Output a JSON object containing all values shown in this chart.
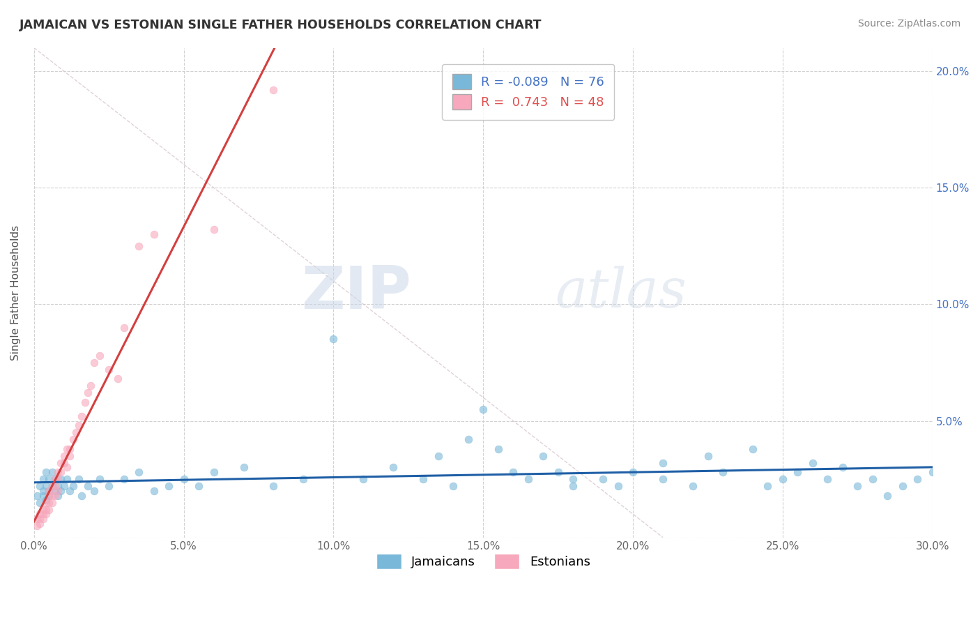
{
  "title": "JAMAICAN VS ESTONIAN SINGLE FATHER HOUSEHOLDS CORRELATION CHART",
  "source_text": "Source: ZipAtlas.com",
  "ylabel": "Single Father Households",
  "xlim": [
    0.0,
    0.3
  ],
  "ylim": [
    0.0,
    0.21
  ],
  "xtick_vals": [
    0.0,
    0.05,
    0.1,
    0.15,
    0.2,
    0.25,
    0.3
  ],
  "ytick_vals": [
    0.0,
    0.05,
    0.1,
    0.15,
    0.2
  ],
  "jamaicans_color": "#7ab8d9",
  "estonians_color": "#f7a8bc",
  "trendline_jamaicans_color": "#1f5fa6",
  "trendline_estonians_color": "#d43f3f",
  "diagonal_line_color": "#d8c8cc",
  "r_jamaicans": -0.089,
  "n_jamaicans": 76,
  "r_estonians": 0.743,
  "n_estonians": 48,
  "watermark_zip": "ZIP",
  "watermark_atlas": "atlas",
  "background_color": "#ffffff",
  "grid_color": "#cccccc",
  "ytick_color": "#4472c4",
  "jamaicans_x": [
    0.001,
    0.002,
    0.002,
    0.003,
    0.003,
    0.003,
    0.004,
    0.004,
    0.004,
    0.005,
    0.005,
    0.005,
    0.006,
    0.006,
    0.007,
    0.007,
    0.008,
    0.008,
    0.009,
    0.009,
    0.01,
    0.011,
    0.012,
    0.013,
    0.015,
    0.016,
    0.018,
    0.02,
    0.022,
    0.025,
    0.03,
    0.035,
    0.04,
    0.045,
    0.05,
    0.055,
    0.06,
    0.07,
    0.08,
    0.09,
    0.1,
    0.11,
    0.12,
    0.13,
    0.14,
    0.15,
    0.16,
    0.17,
    0.18,
    0.19,
    0.2,
    0.21,
    0.22,
    0.225,
    0.23,
    0.24,
    0.245,
    0.25,
    0.255,
    0.26,
    0.265,
    0.27,
    0.275,
    0.28,
    0.285,
    0.29,
    0.295,
    0.3,
    0.21,
    0.18,
    0.155,
    0.195,
    0.175,
    0.165,
    0.135,
    0.145
  ],
  "jamaicans_y": [
    0.018,
    0.022,
    0.015,
    0.02,
    0.018,
    0.025,
    0.016,
    0.022,
    0.028,
    0.02,
    0.025,
    0.018,
    0.022,
    0.028,
    0.02,
    0.025,
    0.018,
    0.022,
    0.025,
    0.02,
    0.022,
    0.025,
    0.02,
    0.022,
    0.025,
    0.018,
    0.022,
    0.02,
    0.025,
    0.022,
    0.025,
    0.028,
    0.02,
    0.022,
    0.025,
    0.022,
    0.028,
    0.03,
    0.022,
    0.025,
    0.085,
    0.025,
    0.03,
    0.025,
    0.022,
    0.055,
    0.028,
    0.035,
    0.022,
    0.025,
    0.028,
    0.025,
    0.022,
    0.035,
    0.028,
    0.038,
    0.022,
    0.025,
    0.028,
    0.032,
    0.025,
    0.03,
    0.022,
    0.025,
    0.018,
    0.022,
    0.025,
    0.028,
    0.032,
    0.025,
    0.038,
    0.022,
    0.028,
    0.025,
    0.035,
    0.042
  ],
  "estonians_x": [
    0.001,
    0.001,
    0.002,
    0.002,
    0.002,
    0.003,
    0.003,
    0.003,
    0.004,
    0.004,
    0.004,
    0.005,
    0.005,
    0.005,
    0.005,
    0.006,
    0.006,
    0.006,
    0.007,
    0.007,
    0.007,
    0.008,
    0.008,
    0.008,
    0.009,
    0.009,
    0.01,
    0.01,
    0.011,
    0.011,
    0.012,
    0.012,
    0.013,
    0.014,
    0.015,
    0.016,
    0.017,
    0.018,
    0.019,
    0.02,
    0.022,
    0.025,
    0.028,
    0.03,
    0.035,
    0.04,
    0.06,
    0.08
  ],
  "estonians_y": [
    0.005,
    0.008,
    0.006,
    0.01,
    0.008,
    0.01,
    0.012,
    0.008,
    0.012,
    0.015,
    0.01,
    0.015,
    0.018,
    0.012,
    0.02,
    0.018,
    0.022,
    0.015,
    0.022,
    0.025,
    0.018,
    0.025,
    0.028,
    0.02,
    0.028,
    0.032,
    0.032,
    0.035,
    0.038,
    0.03,
    0.035,
    0.038,
    0.042,
    0.045,
    0.048,
    0.052,
    0.058,
    0.062,
    0.065,
    0.075,
    0.078,
    0.072,
    0.068,
    0.09,
    0.125,
    0.13,
    0.132,
    0.192
  ]
}
